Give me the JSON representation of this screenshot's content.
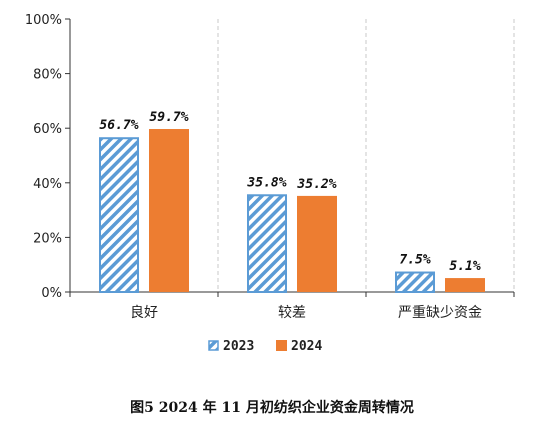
{
  "chart_data": {
    "type": "bar",
    "caption": "图5   2024 年 11 月初纺织企业资金周转情况",
    "categories": [
      "良好",
      "较差",
      "严重缺少资金"
    ],
    "series": [
      {
        "name": "2023",
        "values": [
          56.7,
          35.8,
          7.5
        ],
        "labels": [
          "56.7%",
          "35.8%",
          "7.5%"
        ],
        "pattern": "hatched",
        "color": "#5b9bd5"
      },
      {
        "name": "2024",
        "values": [
          59.7,
          35.2,
          5.1
        ],
        "labels": [
          "59.7%",
          "35.2%",
          "5.1%"
        ],
        "pattern": "solid",
        "color": "#ed7d31"
      }
    ],
    "y_ticks": [
      "0%",
      "20%",
      "40%",
      "60%",
      "80%",
      "100%"
    ],
    "ylim": [
      0,
      100
    ],
    "grid": "dashed-vertical-separators",
    "legend_position": "bottom-center"
  }
}
